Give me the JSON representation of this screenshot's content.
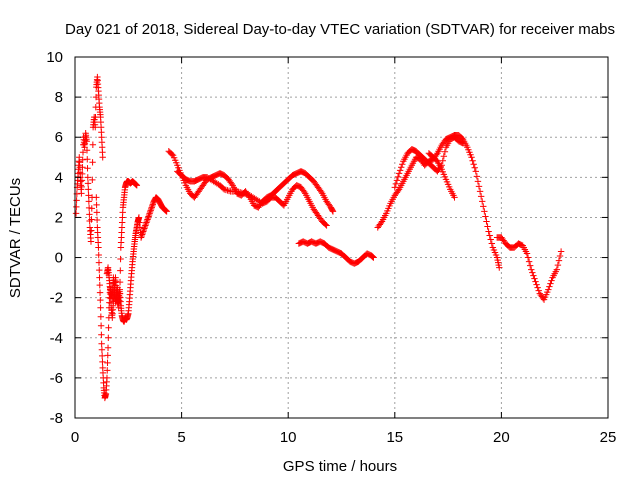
{
  "chart_data": {
    "type": "scatter",
    "title": "Day 021 of 2018, Sidereal Day-to-day VTEC variation (SDTVAR) for receiver mabs",
    "xlabel": "GPS time / hours",
    "ylabel": "SDTVAR / TECUs",
    "xlim": [
      0,
      25
    ],
    "ylim": [
      -8,
      10
    ],
    "x_ticks": [
      "0",
      "5",
      "10",
      "15",
      "20",
      "25"
    ],
    "y_ticks": [
      "10",
      "8",
      "6",
      "4",
      "2",
      "0",
      "-2",
      "-4",
      "-6",
      "-8"
    ],
    "grid": true,
    "marker": "+",
    "colors": {
      "series": "#ff0000",
      "grid": "#a0a0a0",
      "axis": "#000000"
    },
    "series": [
      {
        "name": "SDTVAR",
        "segments": [
          {
            "x": [
              0.05,
              0.1,
              0.15,
              0.2,
              0.25,
              0.3,
              0.35,
              0.4,
              0.45,
              0.5,
              0.55,
              0.6,
              0.65,
              0.7,
              0.75,
              0.8,
              0.85,
              0.9,
              0.95,
              1.0,
              1.05,
              1.1,
              1.15,
              1.2,
              1.25,
              1.3
            ],
            "y": [
              2.2,
              3.5,
              4.2,
              5.0,
              4.0,
              3.2,
              4.5,
              6.0,
              5.5,
              6.2,
              5.8,
              4.0,
              2.8,
              1.5,
              0.8,
              3.0,
              6.5,
              7.0,
              6.5,
              8.5,
              9.0,
              8.3,
              7.5,
              7.0,
              6.0,
              5.0
            ]
          },
          {
            "x": [
              1.0,
              1.05,
              1.1,
              1.15,
              1.2,
              1.25,
              1.3,
              1.35,
              1.4,
              1.45,
              1.5,
              1.55,
              1.6,
              1.65,
              1.7,
              1.75,
              1.8,
              1.85,
              1.9,
              1.95,
              2.0,
              2.05,
              2.1,
              2.15,
              2.2,
              2.25,
              2.3,
              2.35,
              2.4,
              2.45,
              2.5,
              2.6,
              2.7,
              2.8,
              2.9
            ],
            "y": [
              3.0,
              1.5,
              0.5,
              -1.0,
              -2.5,
              -4.3,
              -5.5,
              -6.5,
              -7.0,
              -6.8,
              -6.0,
              -4.5,
              -2.5,
              -1.5,
              -1.8,
              -2.0,
              -1.0,
              -1.5,
              -2.2,
              -2.0,
              -1.5,
              -2.5,
              -1.8,
              0.5,
              1.5,
              2.5,
              3.0,
              3.5,
              3.7,
              3.8,
              3.8,
              3.7,
              3.8,
              3.7,
              3.6
            ]
          },
          {
            "x": [
              1.5,
              1.55,
              1.6,
              1.65,
              1.7,
              1.75,
              1.8,
              1.85,
              1.9,
              1.95,
              2.0,
              2.05,
              2.1,
              2.15,
              2.2,
              2.25,
              2.3,
              2.35,
              2.4,
              2.45,
              2.5,
              2.55,
              2.6,
              2.65,
              2.7,
              2.75,
              2.8,
              2.85,
              2.9,
              2.95,
              3.0,
              3.1,
              3.2,
              3.3,
              3.4,
              3.5,
              3.6,
              3.7,
              3.8,
              3.9,
              4.0,
              4.1,
              4.2,
              4.3
            ],
            "y": [
              -0.8,
              -0.5,
              -1.0,
              -1.6,
              -2.5,
              -3.0,
              -2.2,
              -1.5,
              -1.0,
              -1.8,
              -2.3,
              -2.0,
              -1.6,
              -2.4,
              -2.9,
              -3.1,
              -3.2,
              -3.0,
              -3.1,
              -3.0,
              -2.8,
              -2.2,
              -1.5,
              -0.8,
              -0.2,
              0.3,
              0.8,
              1.2,
              1.5,
              1.8,
              2.0,
              1.0,
              1.3,
              1.6,
              1.9,
              2.2,
              2.5,
              2.8,
              3.0,
              2.9,
              2.7,
              2.5,
              2.4,
              2.3
            ]
          },
          {
            "x": [
              4.4,
              4.6,
              4.8,
              5.0,
              5.2,
              5.4,
              5.6,
              5.8,
              6.0,
              6.2,
              6.4,
              6.6,
              6.8,
              7.0,
              7.2,
              7.4,
              7.6,
              7.8,
              8.0,
              8.2,
              8.4,
              8.6,
              8.8,
              9.0,
              9.2,
              9.4,
              9.6,
              9.8,
              10.0,
              10.2,
              10.4,
              10.6,
              10.8,
              11.0,
              11.2,
              11.4,
              11.6,
              11.8,
              12.0,
              12.1
            ],
            "y": [
              5.3,
              5.1,
              4.6,
              4.1,
              3.6,
              3.2,
              3.0,
              3.3,
              3.6,
              3.9,
              4.0,
              4.1,
              4.2,
              4.1,
              3.9,
              3.6,
              3.2,
              3.1,
              3.3,
              3.0,
              2.6,
              2.5,
              2.8,
              3.0,
              3.1,
              3.3,
              3.5,
              3.7,
              3.9,
              4.1,
              4.2,
              4.3,
              4.2,
              4.0,
              3.8,
              3.5,
              3.2,
              2.8,
              2.5,
              2.3
            ]
          },
          {
            "x": [
              4.8,
              5.0,
              5.2,
              5.4,
              5.6,
              5.8,
              6.0,
              6.2,
              6.5,
              6.8,
              7.0,
              7.3,
              7.6,
              7.9,
              8.2,
              8.5,
              8.8,
              9.0,
              9.2,
              9.4,
              9.6,
              9.8,
              10.0,
              10.2,
              10.4,
              10.6,
              10.8,
              11.0,
              11.2,
              11.4,
              11.6,
              11.8
            ],
            "y": [
              4.3,
              4.1,
              3.9,
              3.8,
              3.8,
              3.9,
              4.0,
              4.0,
              3.8,
              3.6,
              3.4,
              3.3,
              3.3,
              3.2,
              3.1,
              2.9,
              2.7,
              2.8,
              3.0,
              3.0,
              2.8,
              2.6,
              3.0,
              3.4,
              3.6,
              3.5,
              3.2,
              2.8,
              2.4,
              2.1,
              1.8,
              1.6
            ]
          },
          {
            "x": [
              10.5,
              10.7,
              10.9,
              11.1,
              11.3,
              11.5,
              11.7,
              11.9,
              12.1,
              12.3,
              12.5,
              12.7,
              12.9,
              13.1,
              13.3,
              13.5,
              13.7,
              13.9,
              14.0
            ],
            "y": [
              0.7,
              0.8,
              0.7,
              0.8,
              0.7,
              0.8,
              0.7,
              0.5,
              0.4,
              0.3,
              0.2,
              0.0,
              -0.2,
              -0.3,
              -0.2,
              0.0,
              0.2,
              0.1,
              0.0
            ]
          },
          {
            "x": [
              14.2,
              14.4,
              14.6,
              14.8,
              15.0,
              15.2,
              15.4,
              15.6,
              15.8,
              16.0,
              16.2,
              16.4,
              16.6,
              16.8,
              17.0,
              17.2,
              17.4,
              17.6,
              17.8,
              18.0,
              18.2,
              18.4,
              18.6,
              18.8,
              19.0,
              19.2,
              19.4,
              19.6,
              19.8,
              19.9
            ],
            "y": [
              1.5,
              1.8,
              2.2,
              2.7,
              3.1,
              3.4,
              3.8,
              4.2,
              4.6,
              5.0,
              4.9,
              4.6,
              4.8,
              4.9,
              5.2,
              5.6,
              5.9,
              6.0,
              6.1,
              6.1,
              5.9,
              5.5,
              5.0,
              4.3,
              3.3,
              2.3,
              1.3,
              0.5,
              0.0,
              -0.5
            ]
          },
          {
            "x": [
              15.0,
              15.2,
              15.4,
              15.6,
              15.8,
              16.0,
              16.2,
              16.4,
              16.6,
              16.8,
              17.0,
              17.2,
              17.4,
              17.6,
              17.8,
              18.0,
              18.2
            ],
            "y": [
              3.5,
              4.2,
              4.8,
              5.2,
              5.4,
              5.3,
              5.1,
              4.9,
              4.7,
              4.5,
              4.3,
              4.6,
              5.5,
              5.9,
              6.0,
              5.8,
              5.7
            ]
          },
          {
            "x": [
              16.6,
              16.8,
              17.0,
              17.2,
              17.4,
              17.6,
              17.8
            ],
            "y": [
              5.2,
              5.0,
              4.8,
              4.4,
              3.9,
              3.4,
              3.0
            ]
          },
          {
            "x": [
              19.8,
              20.0,
              20.2,
              20.4,
              20.6,
              20.8,
              21.0,
              21.2,
              21.4,
              21.6,
              21.8,
              22.0,
              22.2,
              22.4,
              22.6,
              22.8
            ],
            "y": [
              1.0,
              1.0,
              0.7,
              0.5,
              0.5,
              0.7,
              0.6,
              0.2,
              -0.6,
              -1.2,
              -1.8,
              -2.1,
              -1.6,
              -1.0,
              -0.6,
              0.3
            ]
          }
        ]
      }
    ]
  }
}
